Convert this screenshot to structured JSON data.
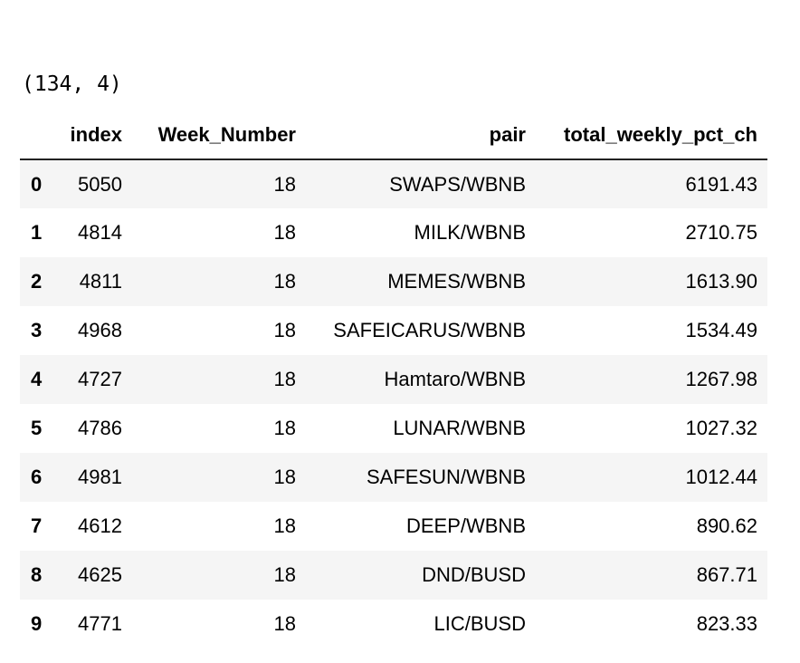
{
  "output": {
    "lines": [
      "(134, 4)",
      "134"
    ]
  },
  "dataframe": {
    "columns": [
      "",
      "index",
      "Week_Number",
      "pair",
      "total_weekly_pct_ch"
    ],
    "rows": [
      {
        "idx": "0",
        "index": "5050",
        "week": "18",
        "pair": "SWAPS/WBNB",
        "pct": "6191.43"
      },
      {
        "idx": "1",
        "index": "4814",
        "week": "18",
        "pair": "MILK/WBNB",
        "pct": "2710.75"
      },
      {
        "idx": "2",
        "index": "4811",
        "week": "18",
        "pair": "MEMES/WBNB",
        "pct": "1613.90"
      },
      {
        "idx": "3",
        "index": "4968",
        "week": "18",
        "pair": "SAFEICARUS/WBNB",
        "pct": "1534.49"
      },
      {
        "idx": "4",
        "index": "4727",
        "week": "18",
        "pair": "Hamtaro/WBNB",
        "pct": "1267.98"
      },
      {
        "idx": "5",
        "index": "4786",
        "week": "18",
        "pair": "LUNAR/WBNB",
        "pct": "1027.32"
      },
      {
        "idx": "6",
        "index": "4981",
        "week": "18",
        "pair": "SAFESUN/WBNB",
        "pct": "1012.44"
      },
      {
        "idx": "7",
        "index": "4612",
        "week": "18",
        "pair": "DEEP/WBNB",
        "pct": "890.62"
      },
      {
        "idx": "8",
        "index": "4625",
        "week": "18",
        "pair": "DND/BUSD",
        "pct": "867.71"
      },
      {
        "idx": "9",
        "index": "4771",
        "week": "18",
        "pair": "LIC/BUSD",
        "pct": "823.33"
      }
    ]
  },
  "colors": {
    "row_stripe": "#f5f5f5",
    "header_rule": "#222222"
  }
}
